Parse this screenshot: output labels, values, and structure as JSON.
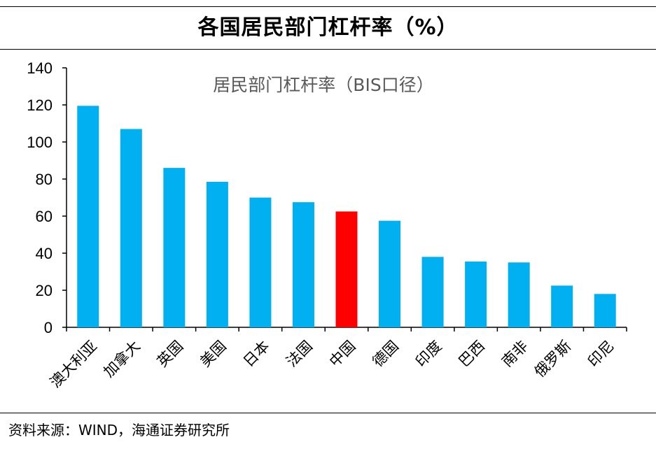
{
  "header": {
    "title": "各国居民部门杠杆率（%）"
  },
  "chart_data": {
    "type": "bar",
    "title": "居民部门杠杆率（BIS口径）",
    "xlabel": "",
    "ylabel": "",
    "ylim": [
      0,
      140
    ],
    "yticks": [
      0,
      20,
      40,
      60,
      80,
      100,
      120,
      140
    ],
    "ytick_labels": [
      "0",
      "20",
      "40",
      "60",
      "80",
      "100",
      "120",
      "140"
    ],
    "grid": false,
    "categories": [
      "澳大利亚",
      "加拿大",
      "英国",
      "美国",
      "日本",
      "法国",
      "中国",
      "德国",
      "印度",
      "巴西",
      "南非",
      "俄罗斯",
      "印尼"
    ],
    "values": [
      119.5,
      107,
      86,
      78.5,
      70,
      67.5,
      62.5,
      57.5,
      38,
      35.5,
      35,
      22.5,
      18
    ],
    "colors": [
      "#00B0F0",
      "#00B0F0",
      "#00B0F0",
      "#00B0F0",
      "#00B0F0",
      "#00B0F0",
      "#FF0000",
      "#00B0F0",
      "#00B0F0",
      "#00B0F0",
      "#00B0F0",
      "#00B0F0",
      "#00B0F0"
    ]
  },
  "footer": {
    "source": "资料来源：WIND，海通证券研究所"
  }
}
